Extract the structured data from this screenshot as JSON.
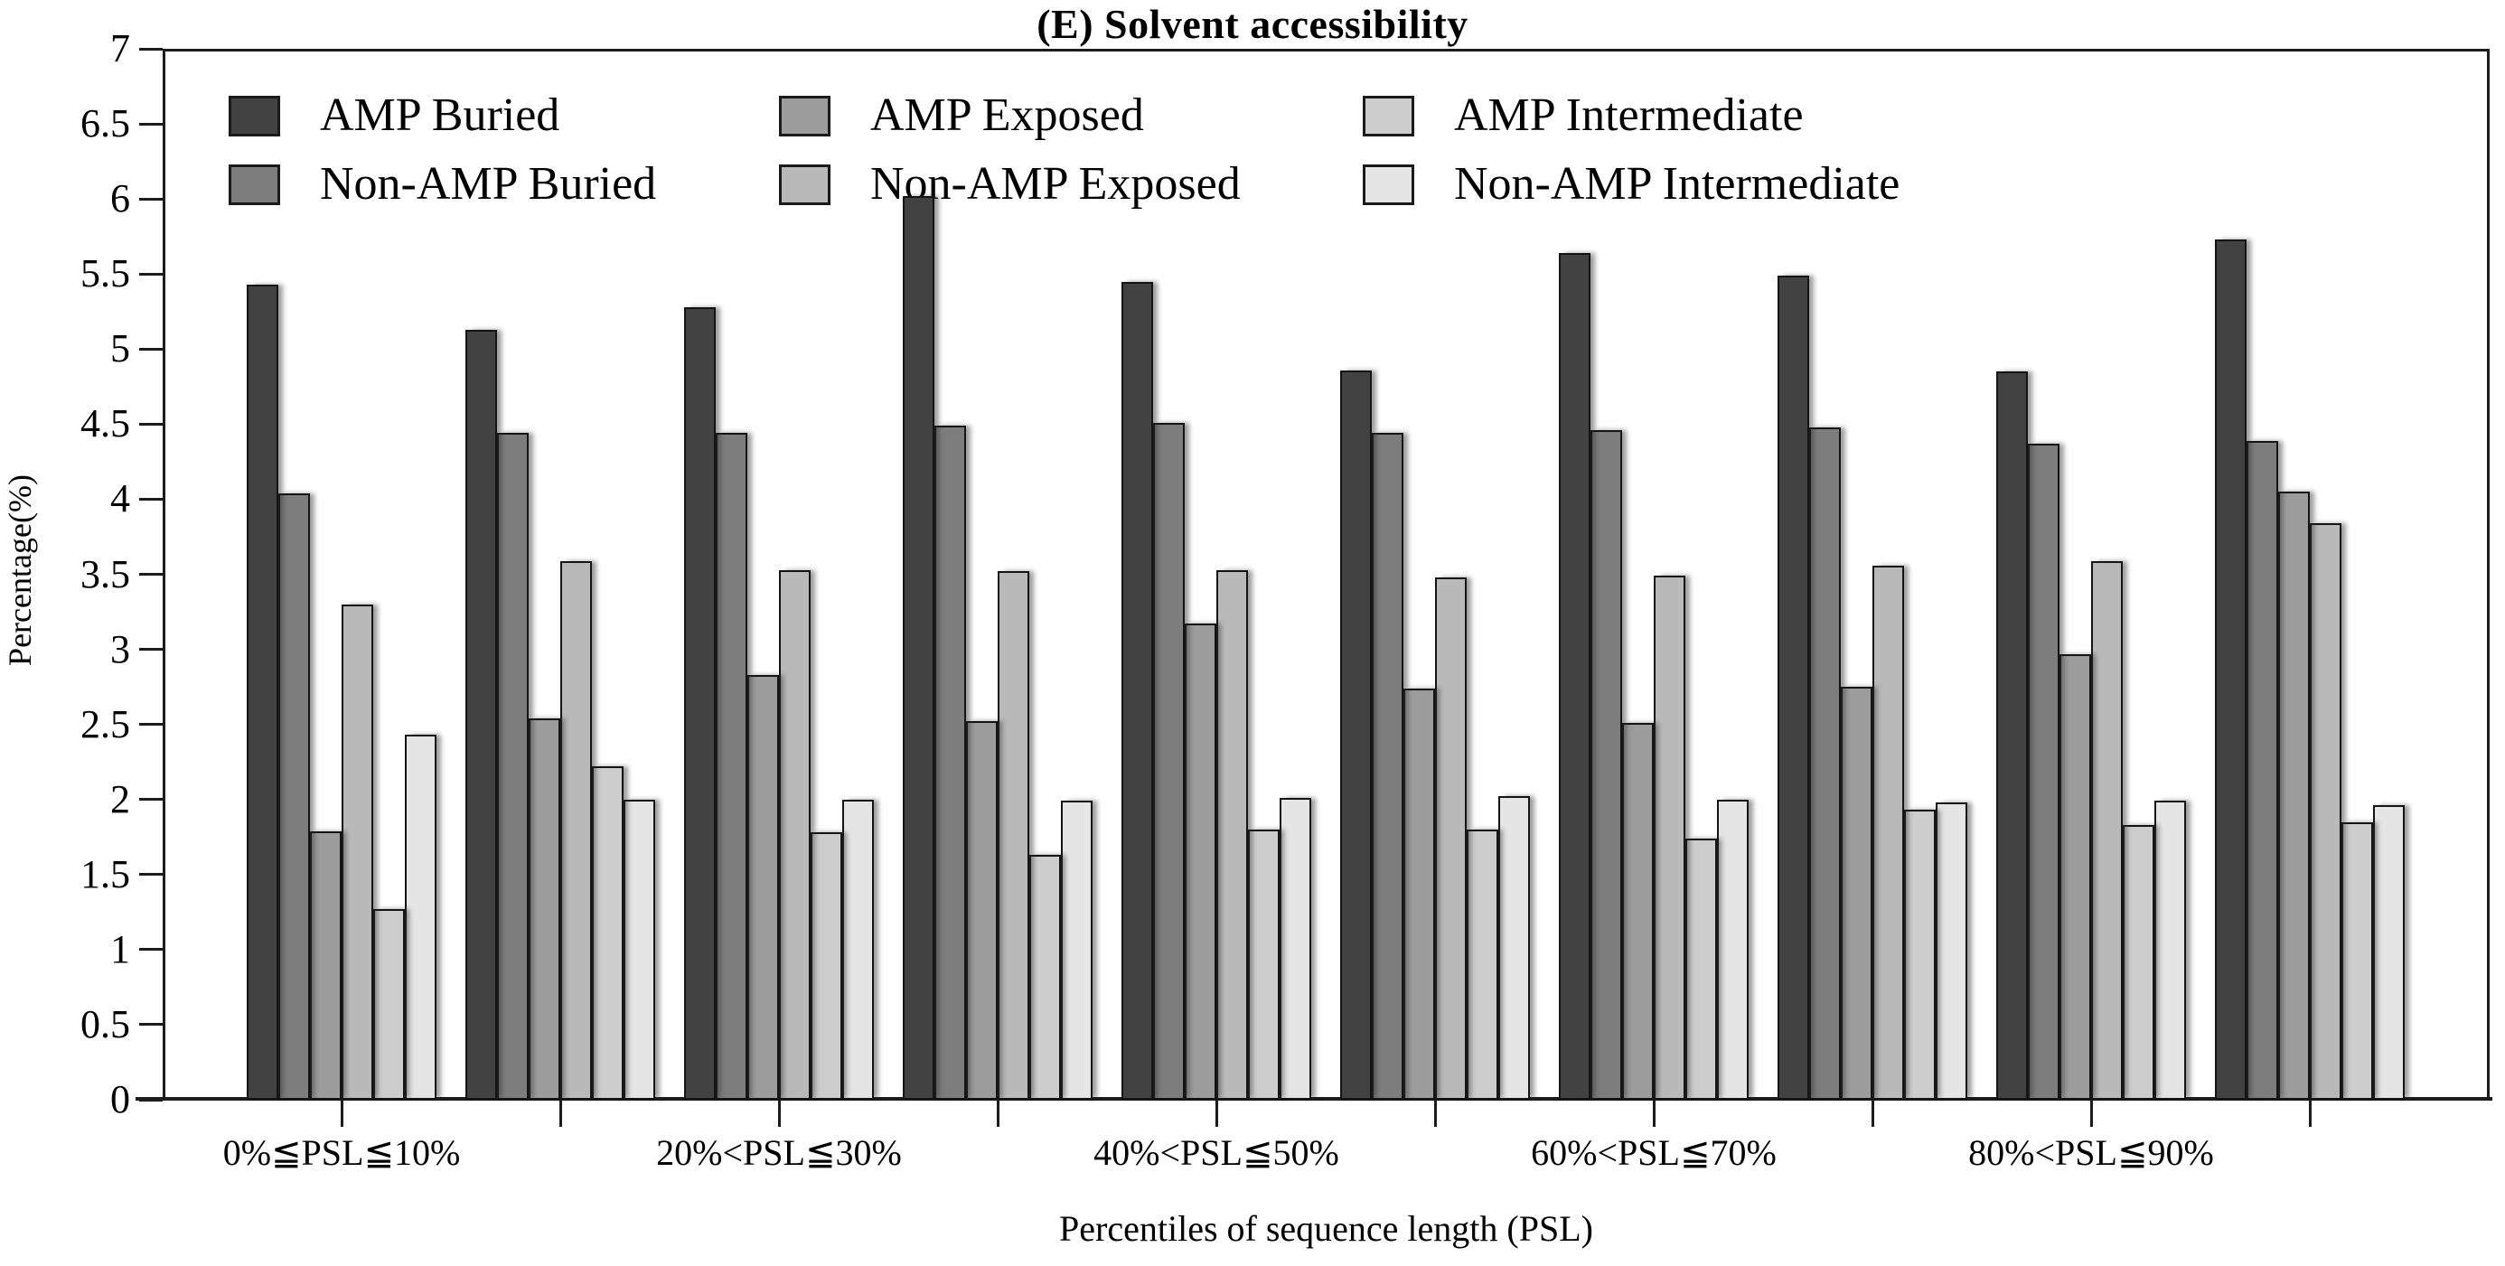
{
  "title": "(E) Solvent accessibility",
  "chart_data": {
    "type": "bar",
    "title": "(E) Solvent accessibility",
    "xlabel": "Percentiles of sequence length (PSL)",
    "ylabel": "Percentage(%)",
    "ylim": [
      0,
      7
    ],
    "ytick_step": 0.5,
    "ytick_labels": [
      "0",
      "0.5",
      "1",
      "1.5",
      "2",
      "2.5",
      "3",
      "3.5",
      "4",
      "4.5",
      "5",
      "5.5",
      "6",
      "6.5",
      "7"
    ],
    "grid": false,
    "frame": true,
    "legend_position": "top-left-inside",
    "legend_rows": 2,
    "legend_columns": 3,
    "num_groups": 10,
    "xtick_labels": [
      "0%≦PSL≦10%",
      "",
      "20%<PSL≦30%",
      "",
      "40%<PSL≦50%",
      "",
      "60%<PSL≦70%",
      "",
      "80%<PSL≦90%",
      ""
    ],
    "bar_border_color": "#141414",
    "series": [
      {
        "name": "AMP Buried",
        "color": "#424242",
        "values": [
          5.43,
          5.13,
          5.28,
          6.02,
          5.45,
          4.86,
          5.64,
          5.49,
          4.85,
          5.73
        ]
      },
      {
        "name": "Non-AMP Buried",
        "color": "#7d7d7d",
        "values": [
          4.04,
          4.44,
          4.44,
          4.49,
          4.51,
          4.44,
          4.46,
          4.48,
          4.37,
          4.39
        ]
      },
      {
        "name": "AMP Exposed",
        "color": "#9c9c9c",
        "values": [
          1.79,
          2.54,
          2.83,
          2.52,
          3.17,
          2.74,
          2.51,
          2.75,
          2.97,
          4.05
        ]
      },
      {
        "name": "Non-AMP Exposed",
        "color": "#b9b9b9",
        "values": [
          3.3,
          3.59,
          3.53,
          3.52,
          3.53,
          3.48,
          3.49,
          3.56,
          3.59,
          3.84
        ]
      },
      {
        "name": "AMP Intermediate",
        "color": "#cdcdcd",
        "values": [
          1.27,
          2.22,
          1.78,
          1.63,
          1.8,
          1.8,
          1.74,
          1.93,
          1.83,
          1.85
        ]
      },
      {
        "name": "Non-AMP Intermediate",
        "color": "#e5e5e5",
        "values": [
          2.43,
          2.0,
          2.0,
          1.99,
          2.01,
          2.02,
          2.0,
          1.98,
          1.99,
          1.96
        ]
      }
    ]
  }
}
